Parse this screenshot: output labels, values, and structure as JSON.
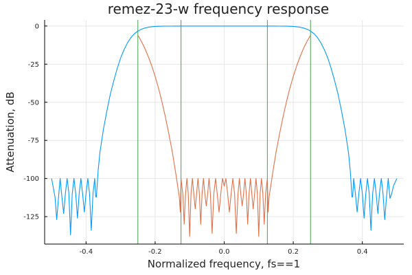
{
  "chart_data": {
    "type": "line",
    "title": "remez-23-w frequency response",
    "xlabel": "Normalized frequency, fs==1",
    "ylabel": "Attenuation, dB",
    "xlim": [
      -0.52,
      0.52
    ],
    "ylim": [
      -143,
      4
    ],
    "xticks": [
      -0.4,
      -0.2,
      0.0,
      0.2,
      0.4
    ],
    "xtick_labels": [
      "-0.4",
      "-0.2",
      "0.0",
      "0.2",
      "0.4"
    ],
    "yticks": [
      0,
      -25,
      -50,
      -75,
      -100,
      -125
    ],
    "ytick_labels": [
      "0",
      "-25",
      "-50",
      "-75",
      "-100",
      "-125"
    ],
    "grid": true,
    "legend": "none",
    "colors": {
      "series_blue": "#009AFA",
      "series_orange": "#E26F46",
      "band_edges": "#3DA44D"
    },
    "band_edges_x": [
      -0.25,
      -0.125,
      0.125,
      0.25
    ],
    "series": [
      {
        "color": "#009AFA",
        "points": [
          [
            -0.5,
            -100
          ],
          [
            -0.49,
            -112
          ],
          [
            -0.485,
            -127
          ],
          [
            -0.48,
            -113
          ],
          [
            -0.475,
            -100
          ],
          [
            -0.47,
            -112
          ],
          [
            -0.465,
            -123
          ],
          [
            -0.46,
            -110
          ],
          [
            -0.455,
            -100
          ],
          [
            -0.45,
            -109
          ],
          [
            -0.445,
            -137
          ],
          [
            -0.44,
            -110
          ],
          [
            -0.435,
            -100
          ],
          [
            -0.43,
            -110
          ],
          [
            -0.425,
            -126
          ],
          [
            -0.42,
            -110
          ],
          [
            -0.415,
            -100
          ],
          [
            -0.41,
            -110
          ],
          [
            -0.405,
            -122
          ],
          [
            -0.4,
            -110
          ],
          [
            -0.395,
            -100
          ],
          [
            -0.39,
            -110
          ],
          [
            -0.385,
            -134
          ],
          [
            -0.38,
            -110
          ],
          [
            -0.375,
            -100
          ],
          [
            -0.372,
            -112
          ],
          [
            -0.37,
            -112
          ],
          [
            -0.365,
            -95
          ],
          [
            -0.36,
            -83
          ],
          [
            -0.35,
            -68
          ],
          [
            -0.34,
            -56
          ],
          [
            -0.33,
            -45
          ],
          [
            -0.32,
            -36
          ],
          [
            -0.31,
            -28
          ],
          [
            -0.3,
            -21
          ],
          [
            -0.29,
            -15.5
          ],
          [
            -0.28,
            -11
          ],
          [
            -0.27,
            -7.5
          ],
          [
            -0.26,
            -5
          ],
          [
            -0.25,
            -3.3
          ],
          [
            -0.24,
            -2.1
          ],
          [
            -0.23,
            -1.3
          ],
          [
            -0.22,
            -0.8
          ],
          [
            -0.21,
            -0.45
          ],
          [
            -0.2,
            -0.25
          ],
          [
            -0.18,
            -0.1
          ],
          [
            -0.16,
            -0.05
          ],
          [
            -0.14,
            0
          ],
          [
            -0.1,
            0
          ],
          [
            0.0,
            0
          ],
          [
            0.1,
            0
          ],
          [
            0.14,
            0
          ],
          [
            0.16,
            -0.05
          ],
          [
            0.18,
            -0.1
          ],
          [
            0.2,
            -0.25
          ],
          [
            0.21,
            -0.45
          ],
          [
            0.22,
            -0.8
          ],
          [
            0.23,
            -1.3
          ],
          [
            0.24,
            -2.1
          ],
          [
            0.25,
            -3.3
          ],
          [
            0.26,
            -5
          ],
          [
            0.27,
            -7.5
          ],
          [
            0.28,
            -11
          ],
          [
            0.29,
            -15.5
          ],
          [
            0.3,
            -21
          ],
          [
            0.31,
            -28
          ],
          [
            0.32,
            -36
          ],
          [
            0.33,
            -45
          ],
          [
            0.34,
            -56
          ],
          [
            0.35,
            -68
          ],
          [
            0.36,
            -83
          ],
          [
            0.365,
            -95
          ],
          [
            0.37,
            -112
          ],
          [
            0.372,
            -112
          ],
          [
            0.375,
            -100
          ],
          [
            0.38,
            -110
          ],
          [
            0.385,
            -122
          ],
          [
            0.39,
            -110
          ],
          [
            0.395,
            -100
          ],
          [
            0.4,
            -110
          ],
          [
            0.405,
            -126
          ],
          [
            0.41,
            -110
          ],
          [
            0.415,
            -100
          ],
          [
            0.42,
            -110
          ],
          [
            0.425,
            -134
          ],
          [
            0.43,
            -110
          ],
          [
            0.435,
            -100
          ],
          [
            0.44,
            -110
          ],
          [
            0.445,
            -123
          ],
          [
            0.45,
            -109
          ],
          [
            0.455,
            -100
          ],
          [
            0.46,
            -110
          ],
          [
            0.465,
            -127
          ],
          [
            0.47,
            -112
          ],
          [
            0.475,
            -100
          ],
          [
            0.48,
            -113
          ],
          [
            0.485,
            -110
          ],
          [
            0.49,
            -105
          ],
          [
            0.5,
            -100
          ]
        ]
      },
      {
        "color": "#E26F46",
        "points": [
          [
            -0.25,
            -6
          ],
          [
            -0.24,
            -10
          ],
          [
            -0.23,
            -14.5
          ],
          [
            -0.22,
            -20
          ],
          [
            -0.21,
            -26
          ],
          [
            -0.2,
            -33
          ],
          [
            -0.19,
            -41
          ],
          [
            -0.18,
            -50
          ],
          [
            -0.17,
            -60
          ],
          [
            -0.16,
            -71
          ],
          [
            -0.15,
            -83
          ],
          [
            -0.14,
            -97
          ],
          [
            -0.13,
            -112
          ],
          [
            -0.127,
            -122
          ],
          [
            -0.125,
            -100
          ],
          [
            -0.12,
            -110
          ],
          [
            -0.116,
            -130
          ],
          [
            -0.112,
            -110
          ],
          [
            -0.108,
            -100
          ],
          [
            -0.104,
            -110
          ],
          [
            -0.1,
            -138
          ],
          [
            -0.096,
            -110
          ],
          [
            -0.092,
            -100
          ],
          [
            -0.088,
            -110
          ],
          [
            -0.084,
            -120
          ],
          [
            -0.08,
            -110
          ],
          [
            -0.076,
            -100
          ],
          [
            -0.072,
            -110
          ],
          [
            -0.068,
            -130
          ],
          [
            -0.064,
            -110
          ],
          [
            -0.06,
            -100
          ],
          [
            -0.056,
            -110
          ],
          [
            -0.052,
            -118
          ],
          [
            -0.048,
            -110
          ],
          [
            -0.044,
            -100
          ],
          [
            -0.04,
            -110
          ],
          [
            -0.035,
            -136
          ],
          [
            -0.03,
            -110
          ],
          [
            -0.025,
            -100
          ],
          [
            -0.02,
            -110
          ],
          [
            -0.015,
            -122
          ],
          [
            -0.01,
            -110
          ],
          [
            -0.005,
            -100
          ],
          [
            0.0,
            -105
          ],
          [
            0.005,
            -100
          ],
          [
            0.01,
            -110
          ],
          [
            0.015,
            -122
          ],
          [
            0.02,
            -110
          ],
          [
            0.025,
            -100
          ],
          [
            0.03,
            -110
          ],
          [
            0.035,
            -136
          ],
          [
            0.04,
            -110
          ],
          [
            0.044,
            -100
          ],
          [
            0.048,
            -110
          ],
          [
            0.052,
            -118
          ],
          [
            0.056,
            -110
          ],
          [
            0.06,
            -100
          ],
          [
            0.064,
            -110
          ],
          [
            0.068,
            -130
          ],
          [
            0.072,
            -110
          ],
          [
            0.076,
            -100
          ],
          [
            0.08,
            -110
          ],
          [
            0.084,
            -120
          ],
          [
            0.088,
            -110
          ],
          [
            0.092,
            -100
          ],
          [
            0.096,
            -110
          ],
          [
            0.1,
            -138
          ],
          [
            0.104,
            -110
          ],
          [
            0.108,
            -100
          ],
          [
            0.112,
            -110
          ],
          [
            0.116,
            -130
          ],
          [
            0.12,
            -110
          ],
          [
            0.125,
            -100
          ],
          [
            0.127,
            -122
          ],
          [
            0.13,
            -112
          ],
          [
            0.14,
            -97
          ],
          [
            0.15,
            -83
          ],
          [
            0.16,
            -71
          ],
          [
            0.17,
            -60
          ],
          [
            0.18,
            -50
          ],
          [
            0.19,
            -41
          ],
          [
            0.2,
            -33
          ],
          [
            0.21,
            -26
          ],
          [
            0.22,
            -20
          ],
          [
            0.23,
            -14.5
          ],
          [
            0.24,
            -10
          ],
          [
            0.25,
            -6
          ]
        ]
      }
    ]
  }
}
